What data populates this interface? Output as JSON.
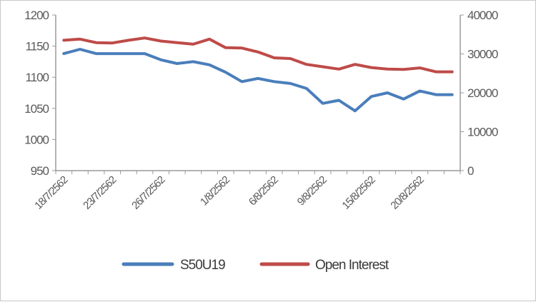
{
  "chart_data": {
    "type": "line",
    "title": "",
    "xlabel": "",
    "ylabel": "",
    "y2label": "",
    "ylim": [
      950,
      1200
    ],
    "y2lim": [
      0,
      40000
    ],
    "yticks": [
      "950",
      "1000",
      "1050",
      "1100",
      "1150",
      "1200"
    ],
    "y2ticks": [
      "0",
      "10000",
      "20000",
      "30000",
      "40000"
    ],
    "grid": false,
    "legend_position": "bottom",
    "x": [
      "18/7/2562",
      "19/7/2562",
      "22/7/2562",
      "23/7/2562",
      "24/7/2562",
      "25/7/2562",
      "26/7/2562",
      "29/7/2562",
      "30/7/2562",
      "31/7/2562",
      "1/8/2562",
      "2/8/2562",
      "5/8/2562",
      "6/8/2562",
      "7/8/2562",
      "8/8/2562",
      "9/8/2562",
      "13/8/2562",
      "14/8/2562",
      "15/8/2562",
      "16/8/2562",
      "19/8/2562",
      "20/8/2562",
      "21/8/2562",
      "22/8/2562"
    ],
    "x_tick_labels": [
      {
        "index": 0,
        "label": "18/7/2562"
      },
      {
        "index": 3,
        "label": "23/7/2562"
      },
      {
        "index": 6,
        "label": "26/7/2562"
      },
      {
        "index": 10,
        "label": "1/8/2562"
      },
      {
        "index": 13,
        "label": "6/8/2562"
      },
      {
        "index": 16,
        "label": "9/8/2562"
      },
      {
        "index": 19,
        "label": "15/8/2562"
      },
      {
        "index": 22,
        "label": "20/8/2562"
      }
    ],
    "series": [
      {
        "name": "S50U19",
        "axis": "left",
        "color": "#4a7ebb",
        "values": [
          1138,
          1145,
          1138,
          1138,
          1138,
          1138,
          1128,
          1122,
          1125,
          1120,
          1108,
          1093,
          1098,
          1093,
          1090,
          1082,
          1058,
          1063,
          1046,
          1069,
          1075,
          1065,
          1078,
          1072,
          1072
        ]
      },
      {
        "name": "Open Interest",
        "axis": "right",
        "color": "#be4b48",
        "values": [
          33500,
          33800,
          32900,
          32800,
          33500,
          34100,
          33300,
          32900,
          32500,
          33800,
          31600,
          31500,
          30500,
          29000,
          28800,
          27300,
          26700,
          26100,
          27300,
          26500,
          26100,
          26000,
          26400,
          25400,
          25400
        ]
      }
    ]
  }
}
